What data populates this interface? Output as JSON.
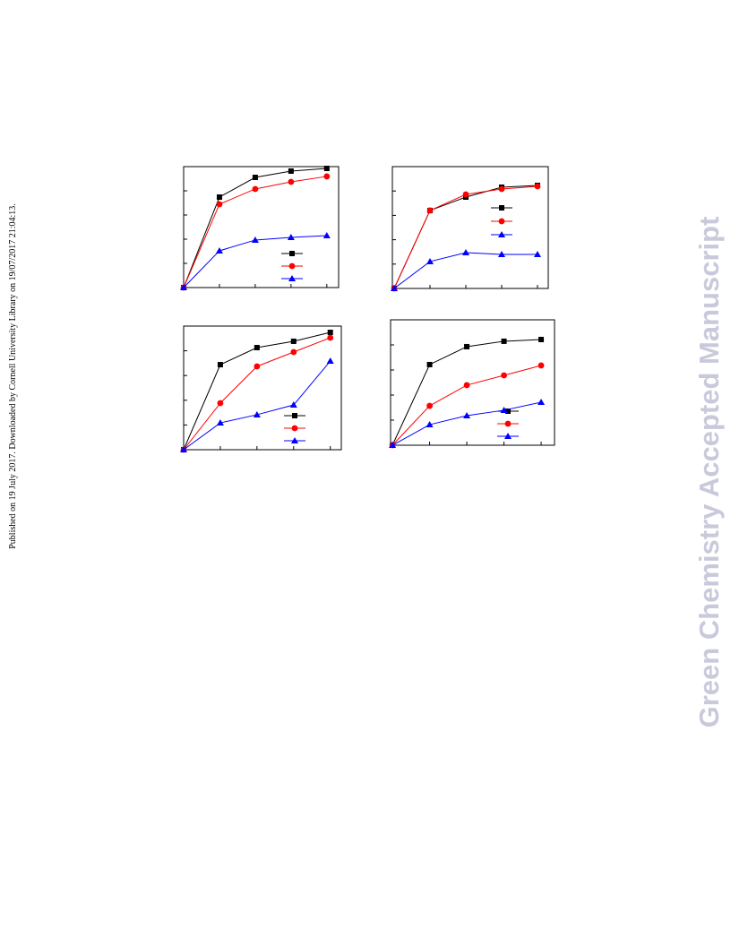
{
  "side_note": "Published on 19 July 2017. Downloaded by Cornell University Library on 19/07/2017 21:04:13.",
  "watermark": "Green Chemistry Accepted Manuscript",
  "chart_data": [
    {
      "type": "line",
      "x": [
        0,
        1,
        2,
        3,
        4
      ],
      "xlim": [
        0,
        4.33
      ],
      "xticks": [
        0,
        1,
        2,
        3,
        4
      ],
      "ylim": [
        0,
        100
      ],
      "yticks": [
        0,
        20,
        40,
        60,
        80,
        100
      ],
      "legend": "lower right",
      "series": [
        {
          "color": "#000000",
          "marker": "square",
          "values": [
            0,
            74.8,
            91.1,
            96.3,
            98.5
          ]
        },
        {
          "color": "#ff0000",
          "marker": "circle",
          "values": [
            0,
            68.9,
            81.5,
            87.4,
            91.9
          ]
        },
        {
          "color": "#0000ff",
          "marker": "triangle",
          "values": [
            0,
            30.4,
            39.3,
            41.5,
            43.0
          ]
        }
      ]
    },
    {
      "type": "line",
      "x": [
        0,
        1,
        2,
        3,
        4
      ],
      "xlim": [
        -0.05,
        4.3
      ],
      "xticks": [
        0,
        1,
        2,
        3,
        4
      ],
      "ylim": [
        0,
        100
      ],
      "yticks": [
        0,
        20,
        40,
        60,
        80,
        100
      ],
      "legend": "center right",
      "series": [
        {
          "color": "#000000",
          "marker": "square",
          "values": [
            0,
            64.0,
            75.0,
            83.1,
            84.6
          ]
        },
        {
          "color": "#ff0000",
          "marker": "circle",
          "values": [
            0,
            64.0,
            77.2,
            81.6,
            83.8
          ]
        },
        {
          "color": "#0000ff",
          "marker": "triangle",
          "values": [
            0,
            22.1,
            29.4,
            27.9,
            27.9
          ]
        }
      ]
    },
    {
      "type": "line",
      "x": [
        0,
        1,
        2,
        3,
        4
      ],
      "xlim": [
        0,
        4.3
      ],
      "xticks": [
        0,
        1,
        2,
        3,
        4
      ],
      "ylim": [
        0,
        100
      ],
      "yticks": [
        0,
        20,
        40,
        60,
        80,
        100
      ],
      "legend": "lower right",
      "series": [
        {
          "color": "#000000",
          "marker": "square",
          "values": [
            0,
            68.8,
            82.6,
            87.7,
            94.9
          ]
        },
        {
          "color": "#ff0000",
          "marker": "circle",
          "values": [
            0,
            37.7,
            67.4,
            79.0,
            90.6
          ]
        },
        {
          "color": "#0000ff",
          "marker": "triangle",
          "values": [
            0,
            21.7,
            28.3,
            36.2,
            71.7
          ]
        }
      ]
    },
    {
      "type": "line",
      "x": [
        0,
        1,
        2,
        3,
        4
      ],
      "xlim": [
        -0.05,
        4.36
      ],
      "xticks": [
        0,
        1,
        2,
        3,
        4
      ],
      "ylim": [
        0,
        100
      ],
      "yticks": [
        0,
        20,
        40,
        60,
        80,
        100
      ],
      "legend": "lower right",
      "series": [
        {
          "color": "#000000",
          "marker": "square",
          "values": [
            0,
            64.3,
            78.6,
            82.9,
            84.3
          ]
        },
        {
          "color": "#ff0000",
          "marker": "circle",
          "values": [
            0,
            31.4,
            47.9,
            55.7,
            63.6
          ]
        },
        {
          "color": "#0000ff",
          "marker": "triangle",
          "values": [
            0,
            16.4,
            23.6,
            27.9,
            34.3
          ]
        }
      ]
    }
  ]
}
